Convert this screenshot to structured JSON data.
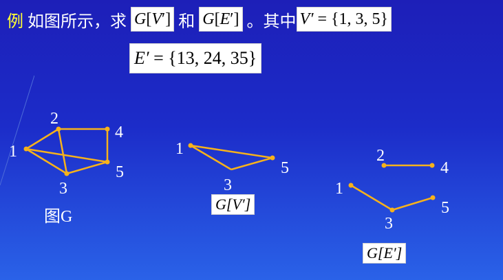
{
  "text": {
    "example": "例",
    "intro": "如图所示，求",
    "and": "和",
    "where": "。其中"
  },
  "formulas": {
    "gv_G": "G",
    "gv_open": "[",
    "gv_V": "V",
    "gv_prime": "′",
    "gv_close": "]",
    "ge_G": "G",
    "ge_open": "[",
    "ge_E": "E",
    "ge_prime": "′",
    "ge_close": "]",
    "vset_lhs": "V′",
    "vset_eq": " = ",
    "vset_rhs": "{1, 3, 5}",
    "eset_lhs": "E′",
    "eset_eq": " = ",
    "eset_rhs": "{13, 24, 35}"
  },
  "graphs": {
    "G": {
      "vertices": [
        "1",
        "2",
        "3",
        "4",
        "5"
      ],
      "edges": [
        [
          "1",
          "2"
        ],
        [
          "1",
          "3"
        ],
        [
          "1",
          "5"
        ],
        [
          "2",
          "3"
        ],
        [
          "2",
          "4"
        ],
        [
          "3",
          "5"
        ],
        [
          "4",
          "5"
        ]
      ],
      "caption": "图G"
    },
    "GV": {
      "vertices": [
        "1",
        "3",
        "5"
      ],
      "edges": [
        [
          "1",
          "3"
        ],
        [
          "1",
          "5"
        ],
        [
          "3",
          "5"
        ]
      ],
      "caption": "G[V′]"
    },
    "GE": {
      "vertices": [
        "1",
        "2",
        "3",
        "4",
        "5"
      ],
      "edges": [
        [
          "1",
          "3"
        ],
        [
          "2",
          "4"
        ],
        [
          "3",
          "5"
        ]
      ],
      "caption": "G[E′]"
    }
  },
  "colors": {
    "edge": "#f7b21b",
    "vertex": "#f7b21b",
    "background": "#1d1fb8",
    "highlight": "#ffff33"
  }
}
